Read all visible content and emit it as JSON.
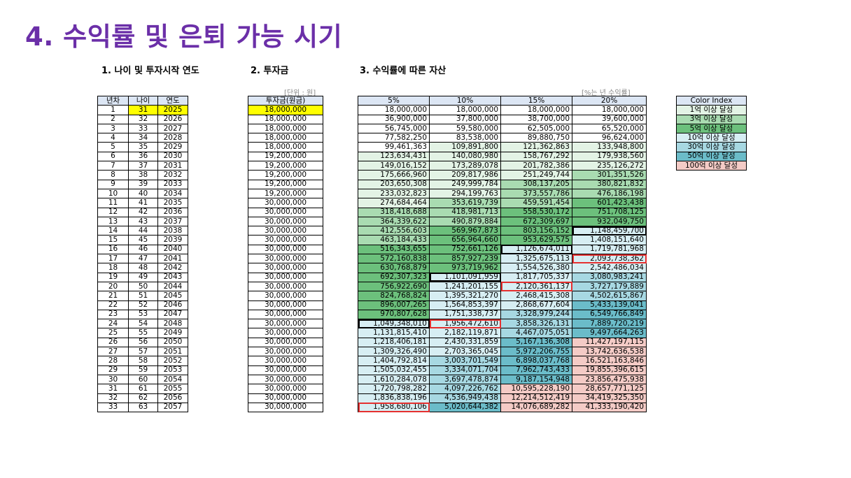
{
  "title": "4. 수익률 및 은퇴 가능 시기",
  "sections": {
    "s1": "1. 나이 및 투자시작 연도",
    "s2": "2. 투자금",
    "s3": "3. 수익률에 따른 자산"
  },
  "notes": {
    "unit": "[단위 : 원]",
    "pct": "[%는 년 수익률]"
  },
  "age_headers": [
    "년차",
    "나이",
    "연도"
  ],
  "invest_header": "투자금(원금)",
  "return_headers": [
    "5%",
    "10%",
    "15%",
    "20%"
  ],
  "legend_header": "Color Index",
  "legend": [
    {
      "label": "1억 이상 달성",
      "color": "#e3f3e5"
    },
    {
      "label": "3억 이상 달성",
      "color": "#a9dbb1"
    },
    {
      "label": "5억 이상 달성",
      "color": "#6cc07c"
    },
    {
      "label": "10억 이상 달성",
      "color": "#d7eef3"
    },
    {
      "label": "30억 이상 달성",
      "color": "#a7d8e2"
    },
    {
      "label": "50억 이상 달성",
      "color": "#6bbcc9"
    },
    {
      "label": "100억 이상 달성",
      "color": "#f4cbc6"
    }
  ],
  "rows": [
    {
      "n": "1",
      "age": "31",
      "year": "2025",
      "inv": "18,000,000",
      "r": [
        "18,000,000",
        "18,000,000",
        "18,000,000",
        "18,000,000"
      ]
    },
    {
      "n": "2",
      "age": "32",
      "year": "2026",
      "inv": "18,000,000",
      "r": [
        "36,900,000",
        "37,800,000",
        "38,700,000",
        "39,600,000"
      ]
    },
    {
      "n": "3",
      "age": "33",
      "year": "2027",
      "inv": "18,000,000",
      "r": [
        "56,745,000",
        "59,580,000",
        "62,505,000",
        "65,520,000"
      ]
    },
    {
      "n": "4",
      "age": "34",
      "year": "2028",
      "inv": "18,000,000",
      "r": [
        "77,582,250",
        "83,538,000",
        "89,880,750",
        "96,624,000"
      ]
    },
    {
      "n": "5",
      "age": "35",
      "year": "2029",
      "inv": "18,000,000",
      "r": [
        "99,461,363",
        "109,891,800",
        "121,362,863",
        "133,948,800"
      ]
    },
    {
      "n": "6",
      "age": "36",
      "year": "2030",
      "inv": "19,200,000",
      "r": [
        "123,634,431",
        "140,080,980",
        "158,767,292",
        "179,938,560"
      ]
    },
    {
      "n": "7",
      "age": "37",
      "year": "2031",
      "inv": "19,200,000",
      "r": [
        "149,016,152",
        "173,289,078",
        "201,782,386",
        "235,126,272"
      ]
    },
    {
      "n": "8",
      "age": "38",
      "year": "2032",
      "inv": "19,200,000",
      "r": [
        "175,666,960",
        "209,817,986",
        "251,249,744",
        "301,351,526"
      ]
    },
    {
      "n": "9",
      "age": "39",
      "year": "2033",
      "inv": "19,200,000",
      "r": [
        "203,650,308",
        "249,999,784",
        "308,137,205",
        "380,821,832"
      ]
    },
    {
      "n": "10",
      "age": "40",
      "year": "2034",
      "inv": "19,200,000",
      "r": [
        "233,032,823",
        "294,199,763",
        "373,557,786",
        "476,186,198"
      ]
    },
    {
      "n": "11",
      "age": "41",
      "year": "2035",
      "inv": "30,000,000",
      "r": [
        "274,684,464",
        "353,619,739",
        "459,591,454",
        "601,423,438"
      ]
    },
    {
      "n": "12",
      "age": "42",
      "year": "2036",
      "inv": "30,000,000",
      "r": [
        "318,418,688",
        "418,981,713",
        "558,530,172",
        "751,708,125"
      ]
    },
    {
      "n": "13",
      "age": "43",
      "year": "2037",
      "inv": "30,000,000",
      "r": [
        "364,339,622",
        "490,879,884",
        "672,309,697",
        "932,049,750"
      ]
    },
    {
      "n": "14",
      "age": "44",
      "year": "2038",
      "inv": "30,000,000",
      "r": [
        "412,556,603",
        "569,967,873",
        "803,156,152",
        "1,148,459,700"
      ]
    },
    {
      "n": "15",
      "age": "45",
      "year": "2039",
      "inv": "30,000,000",
      "r": [
        "463,184,433",
        "656,964,660",
        "953,629,575",
        "1,408,151,640"
      ]
    },
    {
      "n": "16",
      "age": "46",
      "year": "2040",
      "inv": "30,000,000",
      "r": [
        "516,343,655",
        "752,661,126",
        "1,126,674,011",
        "1,719,781,968"
      ]
    },
    {
      "n": "17",
      "age": "47",
      "year": "2041",
      "inv": "30,000,000",
      "r": [
        "572,160,838",
        "857,927,239",
        "1,325,675,113",
        "2,093,738,362"
      ]
    },
    {
      "n": "18",
      "age": "48",
      "year": "2042",
      "inv": "30,000,000",
      "r": [
        "630,768,879",
        "973,719,962",
        "1,554,526,380",
        "2,542,486,034"
      ]
    },
    {
      "n": "19",
      "age": "49",
      "year": "2043",
      "inv": "30,000,000",
      "r": [
        "692,307,323",
        "1,101,091,959",
        "1,817,705,337",
        "3,080,983,241"
      ]
    },
    {
      "n": "20",
      "age": "50",
      "year": "2044",
      "inv": "30,000,000",
      "r": [
        "756,922,690",
        "1,241,201,155",
        "2,120,361,137",
        "3,727,179,889"
      ]
    },
    {
      "n": "21",
      "age": "51",
      "year": "2045",
      "inv": "30,000,000",
      "r": [
        "824,768,824",
        "1,395,321,270",
        "2,468,415,308",
        "4,502,615,867"
      ]
    },
    {
      "n": "22",
      "age": "52",
      "year": "2046",
      "inv": "30,000,000",
      "r": [
        "896,007,265",
        "1,564,853,397",
        "2,868,677,604",
        "5,433,139,041"
      ]
    },
    {
      "n": "23",
      "age": "53",
      "year": "2047",
      "inv": "30,000,000",
      "r": [
        "970,807,628",
        "1,751,338,737",
        "3,328,979,244",
        "6,549,766,849"
      ]
    },
    {
      "n": "24",
      "age": "54",
      "year": "2048",
      "inv": "30,000,000",
      "r": [
        "1,049,348,010",
        "1,956,472,610",
        "3,858,326,131",
        "7,889,720,219"
      ]
    },
    {
      "n": "25",
      "age": "55",
      "year": "2049",
      "inv": "30,000,000",
      "r": [
        "1,131,815,410",
        "2,182,119,871",
        "4,467,075,051",
        "9,497,664,263"
      ]
    },
    {
      "n": "26",
      "age": "56",
      "year": "2050",
      "inv": "30,000,000",
      "r": [
        "1,218,406,181",
        "2,430,331,859",
        "5,167,136,308",
        "11,427,197,115"
      ]
    },
    {
      "n": "27",
      "age": "57",
      "year": "2051",
      "inv": "30,000,000",
      "r": [
        "1,309,326,490",
        "2,703,365,045",
        "5,972,206,755",
        "13,742,636,538"
      ]
    },
    {
      "n": "28",
      "age": "58",
      "year": "2052",
      "inv": "30,000,000",
      "r": [
        "1,404,792,814",
        "3,003,701,549",
        "6,898,037,768",
        "16,521,163,846"
      ]
    },
    {
      "n": "29",
      "age": "59",
      "year": "2053",
      "inv": "30,000,000",
      "r": [
        "1,505,032,455",
        "3,334,071,704",
        "7,962,743,433",
        "19,855,396,615"
      ]
    },
    {
      "n": "30",
      "age": "60",
      "year": "2054",
      "inv": "30,000,000",
      "r": [
        "1,610,284,078",
        "3,697,478,874",
        "9,187,154,948",
        "23,856,475,938"
      ]
    },
    {
      "n": "31",
      "age": "61",
      "year": "2055",
      "inv": "30,000,000",
      "r": [
        "1,720,798,282",
        "4,097,226,762",
        "10,595,228,190",
        "28,657,771,125"
      ]
    },
    {
      "n": "32",
      "age": "62",
      "year": "2056",
      "inv": "30,000,000",
      "r": [
        "1,836,838,196",
        "4,536,949,438",
        "12,214,512,419",
        "34,419,325,350"
      ]
    },
    {
      "n": "33",
      "age": "63",
      "year": "2057",
      "inv": "30,000,000",
      "r": [
        "1,958,680,106",
        "5,020,644,382",
        "14,076,689,282",
        "41,333,190,420"
      ]
    }
  ],
  "black_boxes": [
    [
      23,
      0
    ],
    [
      18,
      1
    ],
    [
      15,
      2
    ],
    [
      13,
      3
    ]
  ],
  "red_boxes": [
    [
      32,
      0
    ],
    [
      23,
      1
    ],
    [
      19,
      2
    ],
    [
      16,
      3
    ]
  ]
}
